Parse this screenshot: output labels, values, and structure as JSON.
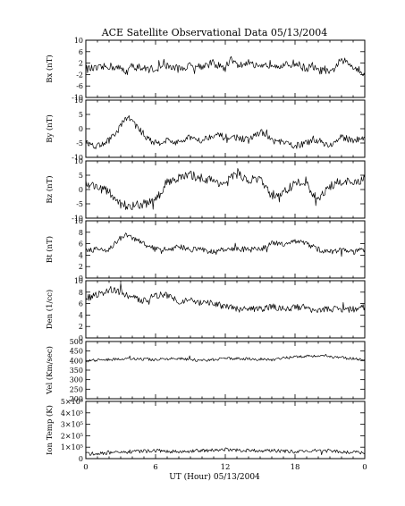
{
  "title": "ACE Satellite Observational Data   05/13/2004",
  "xlabel": "UT (Hour)   05/13/2004",
  "x_ticks": [
    "0",
    "6",
    "12",
    "18",
    "0"
  ],
  "x_tick_values": [
    0,
    6,
    12,
    18,
    24
  ],
  "chart_data": [
    {
      "type": "line",
      "ylabel": "Bx (nT)",
      "ylim": [
        -10,
        10
      ],
      "yticks": [
        "10",
        "6",
        "2",
        "-2",
        "-6",
        "-10"
      ],
      "ytick_values": [
        10,
        6,
        2,
        -2,
        -6,
        -10
      ],
      "series": [
        {
          "x": [
            0,
            1,
            2,
            3,
            3.5,
            4,
            5,
            6,
            7,
            8,
            9,
            10,
            11,
            12,
            12.5,
            13,
            14,
            15,
            16,
            17,
            18,
            19,
            19.5,
            20,
            20.5,
            21,
            21.5,
            22,
            23,
            23.5,
            24
          ],
          "values": [
            0,
            0,
            1,
            0,
            -1,
            1,
            0,
            0,
            1,
            0,
            1,
            1,
            2,
            0,
            4,
            1,
            2,
            0,
            2,
            1,
            2,
            0,
            1,
            -1,
            0,
            -2,
            1,
            3,
            1,
            0,
            -2
          ]
        }
      ]
    },
    {
      "type": "line",
      "ylabel": "By (nT)",
      "ylim": [
        -10,
        10
      ],
      "yticks": [
        "10",
        "5",
        "0",
        "-5",
        "-10"
      ],
      "ytick_values": [
        10,
        5,
        0,
        -5,
        -10
      ],
      "series": [
        {
          "x": [
            0,
            1,
            1.5,
            2,
            2.5,
            3,
            3.5,
            4,
            4.5,
            5,
            5.5,
            6,
            7,
            8,
            9,
            10,
            11,
            12,
            13,
            14,
            15,
            16,
            17,
            18,
            19,
            20,
            21,
            22,
            23,
            24
          ],
          "values": [
            -5,
            -6,
            -5,
            -4,
            -2,
            1,
            4,
            3,
            0,
            -2,
            -4,
            -5,
            -4,
            -5,
            -3,
            -4,
            -2,
            -3,
            -3,
            -4,
            -1,
            -4,
            -5,
            -6,
            -5,
            -4,
            -6,
            -3,
            -4,
            -3
          ]
        }
      ]
    },
    {
      "type": "line",
      "ylabel": "Bz (nT)",
      "ylim": [
        -10,
        10
      ],
      "yticks": [
        "10",
        "5",
        "0",
        "-5",
        "-10"
      ],
      "ytick_values": [
        10,
        5,
        0,
        -5,
        -10
      ],
      "series": [
        {
          "x": [
            0,
            1,
            2,
            2.5,
            3,
            4,
            5,
            6,
            6.5,
            7,
            8,
            9,
            10,
            11,
            12,
            13,
            14,
            15,
            15.5,
            16,
            17,
            18,
            19,
            19.5,
            20,
            21,
            22,
            23,
            24
          ],
          "values": [
            2,
            1,
            -1,
            -3,
            -5,
            -6,
            -5,
            -4,
            -1,
            3,
            4,
            5,
            4,
            3,
            2,
            6,
            3,
            4,
            0,
            -2,
            -1,
            2,
            3,
            -2,
            -3,
            1,
            3,
            2,
            4
          ]
        }
      ]
    },
    {
      "type": "line",
      "ylabel": "Bt (nT)",
      "ylim": [
        0,
        10
      ],
      "yticks": [
        "10",
        "8",
        "6",
        "4",
        "2",
        "0"
      ],
      "ytick_values": [
        10,
        8,
        6,
        4,
        2,
        0
      ],
      "series": [
        {
          "x": [
            0,
            1,
            2,
            2.5,
            3,
            3.5,
            4,
            5,
            5.5,
            6,
            7,
            8,
            9,
            10,
            11,
            12,
            13,
            14,
            15,
            16,
            17,
            18,
            19,
            20,
            21,
            22,
            23,
            24
          ],
          "values": [
            5,
            5,
            5,
            6,
            7,
            7.5,
            7,
            6,
            5.5,
            5,
            5,
            5.5,
            5,
            5,
            4.5,
            5,
            5,
            5,
            5,
            6,
            6,
            6.5,
            6,
            5,
            4.5,
            5,
            4.5,
            5
          ]
        }
      ]
    },
    {
      "type": "line",
      "ylabel": "Den (1/cc)",
      "ylim": [
        0,
        10
      ],
      "yticks": [
        "10",
        "8",
        "6",
        "4",
        "2",
        "0"
      ],
      "ytick_values": [
        10,
        8,
        6,
        4,
        2,
        0
      ],
      "series": [
        {
          "x": [
            0,
            1,
            2,
            3,
            4,
            5,
            6,
            7,
            8,
            9,
            10,
            11,
            12,
            13,
            14,
            15,
            16,
            17,
            18,
            19,
            20,
            21,
            22,
            23,
            24
          ],
          "values": [
            7,
            7.5,
            8.5,
            8,
            7,
            6.5,
            7.5,
            7.5,
            6.5,
            6.5,
            6,
            6,
            5.5,
            5,
            5,
            5,
            5.5,
            5,
            5.5,
            5,
            5,
            5,
            5,
            5,
            5.5
          ]
        }
      ]
    },
    {
      "type": "line",
      "ylabel": "Vel (Km/sec)",
      "ylim": [
        200,
        500
      ],
      "yticks": [
        "500",
        "450",
        "400",
        "350",
        "300",
        "250",
        "200"
      ],
      "ytick_values": [
        500,
        450,
        400,
        350,
        300,
        250,
        200
      ],
      "series": [
        {
          "x": [
            0,
            2,
            4,
            6,
            8,
            10,
            12,
            14,
            16,
            18,
            19,
            20,
            21,
            22,
            23,
            24
          ],
          "values": [
            400,
            405,
            410,
            405,
            410,
            400,
            410,
            410,
            405,
            420,
            425,
            425,
            420,
            415,
            410,
            405
          ]
        }
      ]
    },
    {
      "type": "line",
      "ylabel": "Ion Temp (K)",
      "ylim": [
        0,
        500000
      ],
      "yticks": [
        "5×10⁵",
        "4×10⁵",
        "3×10⁵",
        "2×10⁵",
        "1×10⁵",
        "0"
      ],
      "ytick_values": [
        500000,
        400000,
        300000,
        200000,
        100000,
        0
      ],
      "series": [
        {
          "x": [
            0,
            2,
            4,
            6,
            8,
            10,
            12,
            14,
            16,
            18,
            20,
            22,
            24
          ],
          "values": [
            40000,
            50000,
            60000,
            70000,
            60000,
            70000,
            80000,
            70000,
            70000,
            60000,
            70000,
            60000,
            50000
          ]
        }
      ]
    }
  ]
}
